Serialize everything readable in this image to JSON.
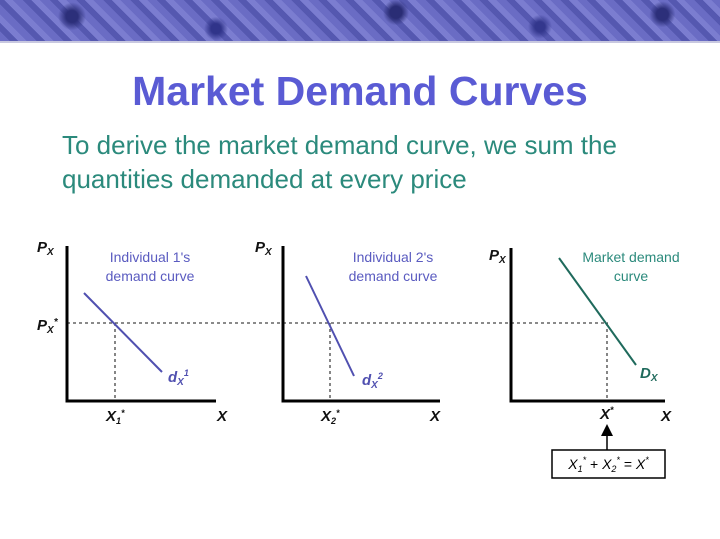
{
  "slide": {
    "title": "Market Demand Curves",
    "subtitle_line1": "To derive the market demand curve, we sum the",
    "subtitle_line2": "quantities demanded at every price"
  },
  "colors": {
    "title": "#5a5bd4",
    "subtitle": "#2b8a7c",
    "individual_curve": "#5050b0",
    "market_curve": "#1f6a5c"
  },
  "diagrams": {
    "price_axis": "P",
    "price_axis_sub": "X",
    "price_star": "P",
    "price_star_sub": "X",
    "star": "*",
    "quantity_axis": "X",
    "individual1": {
      "caption_line1": "Individual 1's",
      "caption_line2": "demand curve",
      "curve_label": "d",
      "curve_sub": "X",
      "curve_sup": "1",
      "quantity": "X",
      "quantity_sub": "1"
    },
    "individual2": {
      "caption_line1": "Individual 2's",
      "caption_line2": "demand curve",
      "curve_label": "d",
      "curve_sub": "X",
      "curve_sup": "2",
      "quantity": "X",
      "quantity_sub": "2"
    },
    "market": {
      "caption_line1": "Market demand",
      "caption_line2": "curve",
      "curve_label": "D",
      "curve_sub": "X",
      "quantity": "X"
    },
    "sum_box": {
      "x1": "X",
      "x1_sub": "1",
      "plus": " + ",
      "x2": "X",
      "x2_sub": "2",
      "equals": " = ",
      "total": "X"
    }
  }
}
